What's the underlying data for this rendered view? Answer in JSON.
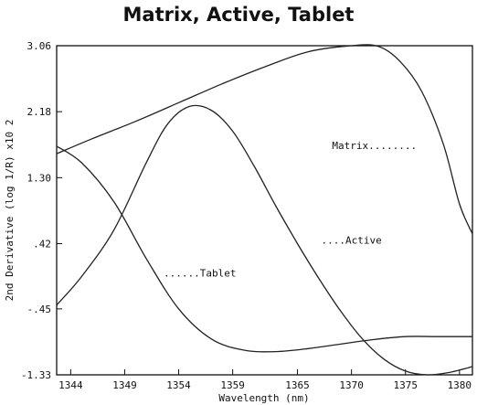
{
  "chart_data": {
    "type": "line",
    "title": "Matrix, Active, Tablet",
    "xlabel": "Wavelength (nm)",
    "ylabel": "2nd Derivative (log 1/R) x10 2",
    "xlim": [
      1342.7,
      1381.2
    ],
    "ylim": [
      -1.33,
      3.06
    ],
    "xticks": [
      "1344",
      "1349",
      "1354",
      "1359",
      "1365",
      "1370",
      "1375",
      "1380"
    ],
    "yticks": [
      "3.06",
      "2.18",
      "1.30",
      ".42",
      "-.45",
      "-1.33"
    ],
    "grid": false,
    "series": [
      {
        "name": "Matrix",
        "label": "Matrix........",
        "x": [
          1342.7,
          1346,
          1350,
          1354,
          1358,
          1362,
          1366,
          1370,
          1372.5,
          1374.5,
          1376.5,
          1378.5,
          1380,
          1381.2
        ],
        "y": [
          1.62,
          1.82,
          2.05,
          2.3,
          2.55,
          2.78,
          2.98,
          3.06,
          3.05,
          2.85,
          2.45,
          1.75,
          0.95,
          0.55
        ]
      },
      {
        "name": "Active",
        "label": "....Active",
        "x": [
          1342.7,
          1345,
          1348,
          1351,
          1353,
          1355,
          1357,
          1359,
          1361,
          1363,
          1365,
          1367,
          1369,
          1371,
          1373,
          1375,
          1377,
          1379,
          1381.2
        ],
        "y": [
          -0.4,
          -0.02,
          0.6,
          1.5,
          2.02,
          2.25,
          2.2,
          1.92,
          1.45,
          0.92,
          0.42,
          -0.05,
          -0.48,
          -0.85,
          -1.12,
          -1.28,
          -1.33,
          -1.3,
          -1.22
        ]
      },
      {
        "name": "Tablet",
        "label": "......Tablet",
        "x": [
          1342.7,
          1345,
          1348,
          1351,
          1354,
          1357,
          1360,
          1363,
          1366,
          1369,
          1372,
          1375,
          1378,
          1381.2
        ],
        "y": [
          1.72,
          1.5,
          0.98,
          0.22,
          -0.45,
          -0.85,
          -1.0,
          -1.02,
          -0.98,
          -0.92,
          -0.86,
          -0.82,
          -0.82,
          -0.82
        ]
      }
    ]
  }
}
